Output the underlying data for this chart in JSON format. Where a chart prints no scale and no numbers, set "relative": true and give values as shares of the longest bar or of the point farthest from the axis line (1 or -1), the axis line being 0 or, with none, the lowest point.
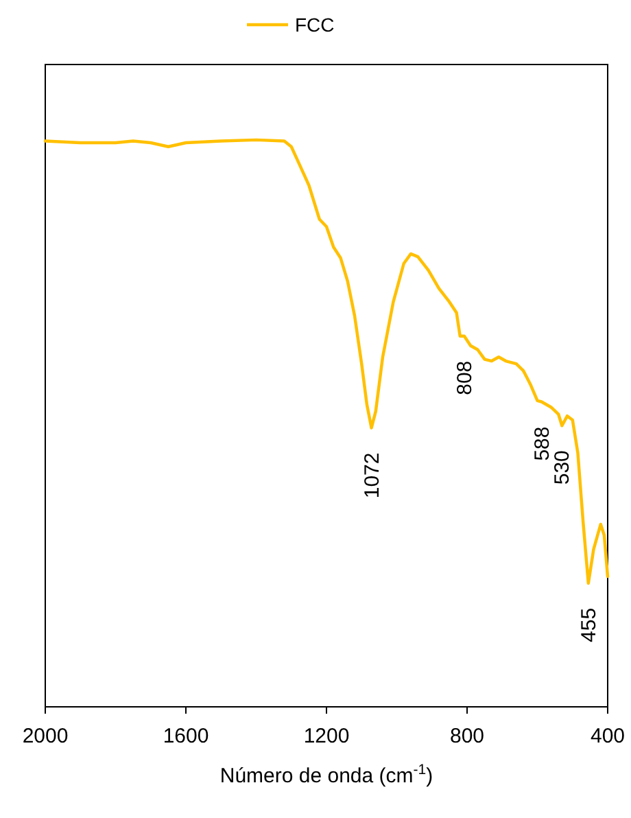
{
  "chart_data": {
    "type": "line",
    "relative": true,
    "xlabel": "Número de onda (cm$^{-1}$)",
    "xlim": [
      2000,
      400
    ],
    "xticks": [
      2000,
      1600,
      1200,
      800,
      400
    ],
    "tick_labels": "x",
    "legend": "top",
    "line_style": "solid",
    "series": [
      {
        "name": "FCC",
        "color": "#ffc000",
        "x": [
          2000,
          1900,
          1800,
          1750,
          1700,
          1650,
          1600,
          1500,
          1400,
          1320,
          1300,
          1280,
          1250,
          1220,
          1200,
          1180,
          1160,
          1140,
          1120,
          1100,
          1085,
          1072,
          1060,
          1040,
          1010,
          980,
          960,
          940,
          910,
          880,
          850,
          830,
          820,
          808,
          790,
          770,
          750,
          730,
          710,
          690,
          660,
          640,
          620,
          600,
          588,
          560,
          540,
          530,
          515,
          500,
          485,
          470,
          455,
          440,
          420,
          410,
          400
        ],
        "values": [
          0.998,
          0.995,
          0.995,
          0.998,
          0.995,
          0.988,
          0.995,
          0.998,
          1.0,
          0.998,
          0.988,
          0.961,
          0.92,
          0.86,
          0.847,
          0.811,
          0.792,
          0.751,
          0.69,
          0.605,
          0.533,
          0.492,
          0.521,
          0.617,
          0.714,
          0.782,
          0.799,
          0.794,
          0.77,
          0.738,
          0.714,
          0.695,
          0.654,
          0.654,
          0.637,
          0.63,
          0.613,
          0.61,
          0.617,
          0.61,
          0.605,
          0.593,
          0.569,
          0.54,
          0.538,
          0.528,
          0.516,
          0.496,
          0.513,
          0.506,
          0.448,
          0.327,
          0.218,
          0.278,
          0.322,
          0.303,
          0.23
        ]
      }
    ],
    "annotations": [
      {
        "text": "1072",
        "x": 1072,
        "y": 0.492
      },
      {
        "text": "808",
        "x": 808,
        "y": 0.654
      },
      {
        "text": "588",
        "x": 588,
        "y": 0.538
      },
      {
        "text": "530",
        "x": 530,
        "y": 0.496
      },
      {
        "text": "455",
        "x": 455,
        "y": 0.218
      }
    ]
  }
}
